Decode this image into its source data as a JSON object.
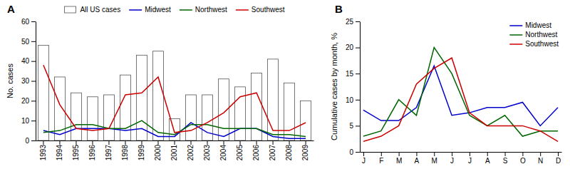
{
  "chart_data": [
    {
      "type": "bar",
      "title": "A",
      "categories": [
        "1993",
        "1994",
        "1995",
        "1996",
        "1997",
        "1998",
        "1999",
        "2000",
        "2001",
        "2002",
        "2003",
        "2004",
        "2005",
        "2006",
        "2007",
        "2008",
        "2009"
      ],
      "series": [
        {
          "name": "All US cases",
          "type": "bar",
          "color": "white",
          "values": [
            48,
            32,
            24,
            22,
            23,
            33,
            43,
            45,
            11,
            23,
            23,
            31,
            27,
            34,
            41,
            29,
            20
          ]
        },
        {
          "name": "Midwest",
          "type": "line",
          "color": "#0000cc",
          "values": [
            5,
            3,
            6,
            6,
            6,
            5,
            6,
            2,
            2,
            9,
            4,
            2,
            6,
            6,
            2,
            1,
            1
          ]
        },
        {
          "name": "Northwest",
          "type": "line",
          "color": "#006600",
          "values": [
            4,
            5,
            8,
            8,
            6,
            6,
            10,
            4,
            3,
            8,
            8,
            6,
            6,
            6,
            3,
            3,
            2
          ]
        },
        {
          "name": "Southwest",
          "type": "line",
          "color": "#cc0000",
          "values": [
            38,
            18,
            6,
            5,
            6,
            23,
            24,
            32,
            4,
            5,
            9,
            14,
            22,
            24,
            5,
            5,
            9
          ]
        }
      ],
      "ylabel": "No. cases",
      "ylim": [
        0,
        60
      ],
      "yticks": [
        0,
        10,
        20,
        30,
        40,
        50,
        60
      ],
      "grid": false,
      "legend": "top"
    },
    {
      "type": "line",
      "title": "B",
      "categories": [
        "J",
        "F",
        "M",
        "A",
        "M",
        "J",
        "J",
        "A",
        "S",
        "O",
        "N",
        "D"
      ],
      "series": [
        {
          "name": "Midwest",
          "color": "#0000cc",
          "values": [
            8.0,
            6.0,
            6.0,
            8.5,
            16.5,
            7.0,
            7.5,
            8.5,
            8.5,
            9.5,
            5.0,
            8.5
          ]
        },
        {
          "name": "Northwest",
          "color": "#006600",
          "values": [
            3.0,
            4.0,
            10.0,
            7.0,
            20.0,
            15.0,
            7.0,
            5.0,
            7.0,
            3.0,
            4.0,
            4.0
          ]
        },
        {
          "name": "Southwest",
          "color": "#cc0000",
          "values": [
            2.0,
            3.0,
            5.0,
            13.0,
            16.0,
            18.0,
            7.5,
            5.0,
            5.0,
            5.0,
            4.0,
            2.0
          ]
        }
      ],
      "ylabel": "Cumulative cases by month, %",
      "ylim": [
        0,
        25
      ],
      "yticks": [
        0,
        5,
        10,
        15,
        20,
        25
      ],
      "grid": false,
      "legend": "top-right"
    }
  ]
}
